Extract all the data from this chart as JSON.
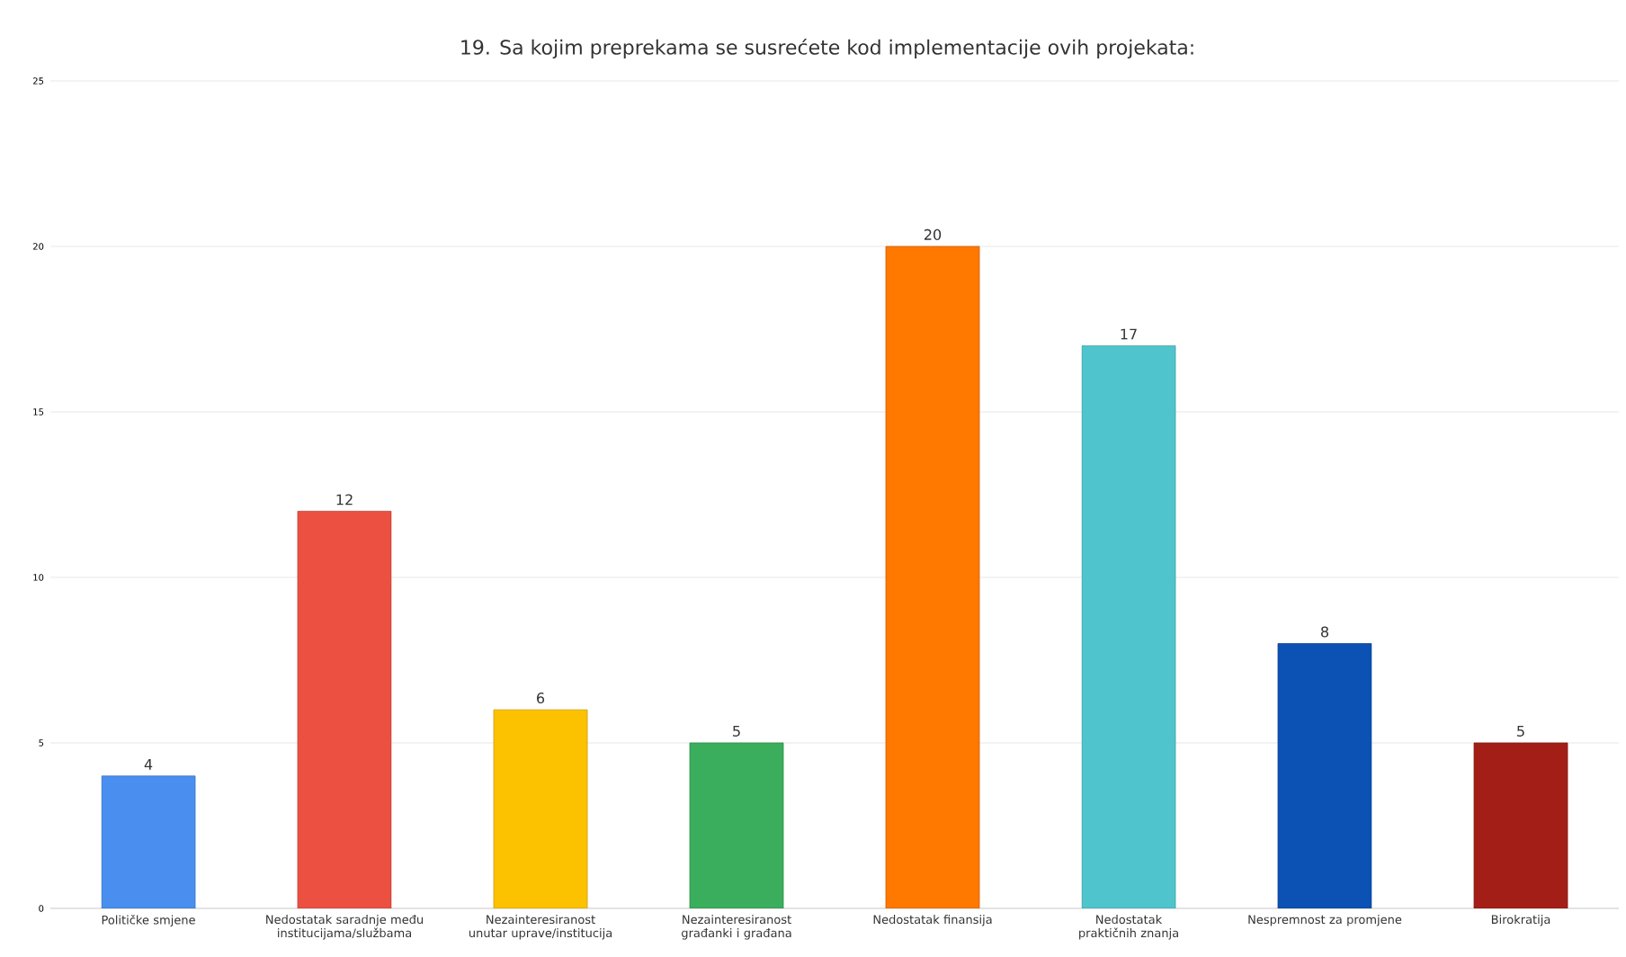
{
  "chart_data": {
    "type": "bar",
    "title": "19. Sa kojim preprekama se susrećete kod implementacije ovih projekata:",
    "categories": [
      "Političke smjene",
      "Nedostatak saradnje među institucijama/službama",
      "Nezainteresiranost unutar uprave/institucija",
      "Nezainteresiranost građanki i građana",
      "Nedostatak finansija",
      "Nedostatak praktičnih znanja",
      "Nespremnost za promjene",
      "Birokratija"
    ],
    "values": [
      4,
      12,
      6,
      5,
      20,
      17,
      8,
      5
    ],
    "colors": [
      "#4a8ff0",
      "#ec5040",
      "#fcc200",
      "#3aae5c",
      "#ff7800",
      "#4fc4cc",
      "#0c52b4",
      "#a41e18"
    ],
    "ylim": [
      0,
      25
    ],
    "yticks": [
      0,
      5,
      10,
      15,
      20,
      25
    ],
    "grid": "y",
    "data_labels": true
  }
}
